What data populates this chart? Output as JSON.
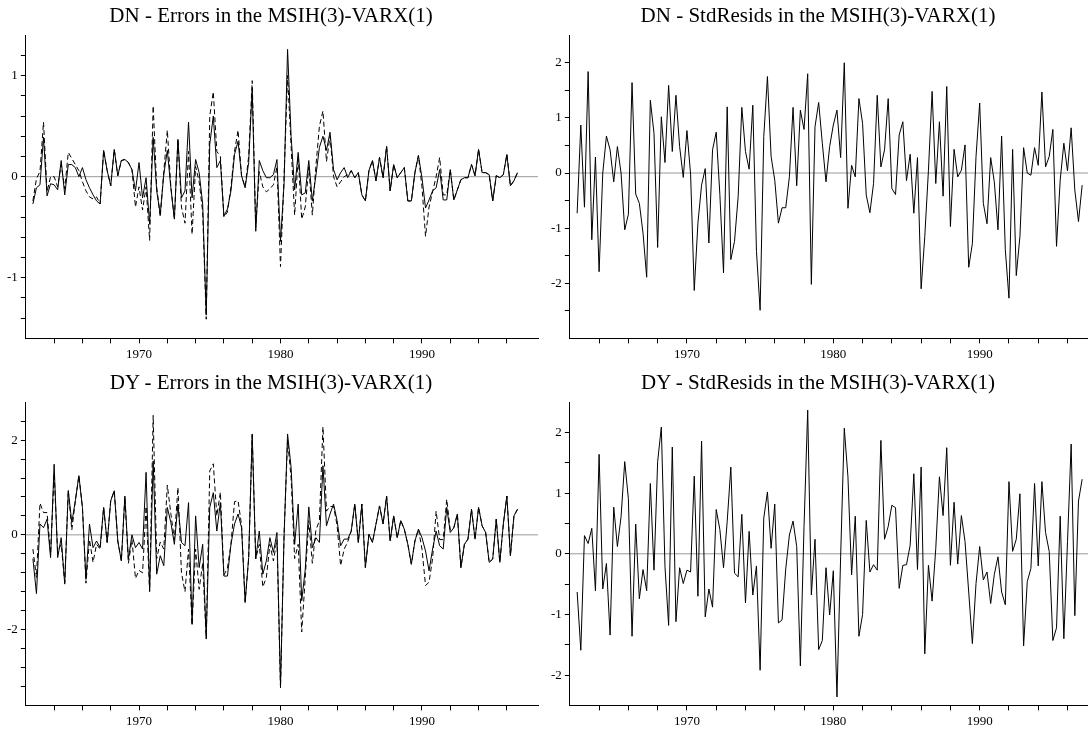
{
  "chart_data": [
    {
      "type": "line",
      "title": "DN - Errors in the MSIH(3)-VARX(1)",
      "x": [
        1962.5,
        1962.75,
        1963,
        1963.25,
        1963.5,
        1963.75,
        1964,
        1964.25,
        1964.5,
        1964.75,
        1965,
        1965.25,
        1965.5,
        1965.75,
        1966,
        1966.25,
        1966.5,
        1966.75,
        1967,
        1967.25,
        1967.5,
        1967.75,
        1968,
        1968.25,
        1968.5,
        1968.75,
        1969,
        1969.25,
        1969.5,
        1969.75,
        1970,
        1970.25,
        1970.5,
        1970.75,
        1971,
        1971.25,
        1971.5,
        1971.75,
        1972,
        1972.25,
        1972.5,
        1972.75,
        1973,
        1973.25,
        1973.5,
        1973.75,
        1974,
        1974.25,
        1974.5,
        1974.75,
        1975,
        1975.25,
        1975.5,
        1975.75,
        1976,
        1976.25,
        1976.5,
        1976.75,
        1977,
        1977.25,
        1977.5,
        1977.75,
        1978,
        1978.25,
        1978.5,
        1978.75,
        1979,
        1979.25,
        1979.5,
        1979.75,
        1980,
        1980.25,
        1980.5,
        1980.75,
        1981,
        1981.25,
        1981.5,
        1981.75,
        1982,
        1982.25,
        1982.5,
        1982.75,
        1983,
        1983.25,
        1983.5,
        1983.75,
        1984,
        1984.25,
        1984.5,
        1984.75,
        1985,
        1985.25,
        1985.5,
        1985.75,
        1986,
        1986.25,
        1986.5,
        1986.75,
        1987,
        1987.25,
        1987.5,
        1987.75,
        1988,
        1988.25,
        1988.5,
        1988.75,
        1989,
        1989.25,
        1989.5,
        1989.75,
        1990,
        1990.25,
        1990.5,
        1990.75,
        1991,
        1991.25,
        1991.5,
        1991.75,
        1992,
        1992.25,
        1992.5,
        1992.75,
        1993,
        1993.25,
        1993.5,
        1993.75,
        1994,
        1994.25,
        1994.5,
        1994.75,
        1995,
        1995.25,
        1995.5,
        1995.75,
        1996,
        1996.25,
        1996.5,
        1996.75
      ],
      "series": [
        {
          "color": "#000000",
          "line_style": "solid",
          "values": [
            -0.27,
            -0.11,
            -0.08,
            0.39,
            -0.19,
            -0.07,
            -0.08,
            -0.13,
            0.16,
            -0.18,
            0.12,
            0.12,
            0.09,
            0,
            0.09,
            -0.03,
            -0.11,
            -0.18,
            -0.24,
            -0.27,
            0.26,
            0.06,
            -0.09,
            0.27,
            0.01,
            0.16,
            0.17,
            0.14,
            0.07,
            -0.14,
            0.14,
            -0.21,
            -0.01,
            -0.47,
            0.39,
            -0.14,
            -0.37,
            0.02,
            0.26,
            -0.11,
            -0.42,
            0.37,
            -0.21,
            -0.14,
            0.54,
            -0.21,
            0.17,
            0.04,
            -0.27,
            -1.37,
            0.32,
            0.6,
            0.09,
            0.16,
            -0.39,
            -0.32,
            -0.14,
            0.22,
            0.35,
            0.01,
            -0.11,
            0.14,
            0.87,
            -0.54,
            0.16,
            0.06,
            -0.01,
            -0.01,
            0.02,
            0.17,
            -0.64,
            -0.08,
            1.26,
            0.4,
            -0.13,
            0.24,
            -0.18,
            -0.16,
            0.16,
            -0.24,
            0.01,
            0.29,
            0.4,
            0.26,
            0.44,
            0.07,
            -0.03,
            0.04,
            0.09,
            -0.01,
            0.06,
            -0.01,
            0.04,
            -0.18,
            -0.24,
            0.06,
            0.16,
            -0.04,
            0.19,
            -0.01,
            0.3,
            -0.14,
            0.12,
            -0.01,
            0.04,
            0.09,
            -0.24,
            -0.24,
            0.04,
            0.21,
            -0.01,
            -0.31,
            -0.23,
            -0.14,
            -0.11,
            0.07,
            -0.23,
            -0.23,
            0.07,
            -0.23,
            -0.13,
            -0.03,
            -0.01,
            -0.01,
            0.12,
            0.01,
            0.27,
            0.04,
            0.04,
            0.02,
            -0.24,
            0.01,
            -0.01,
            0.02,
            0.22,
            -0.09,
            -0.04,
            0.04
          ]
        },
        {
          "color": "#000000",
          "line_style": "dashed",
          "values": [
            -0.24,
            -0.02,
            0.05,
            0.54,
            -0.15,
            0,
            0,
            -0.1,
            0.12,
            -0.12,
            0.24,
            0.18,
            0.12,
            0.06,
            -0.05,
            -0.14,
            -0.2,
            -0.22,
            -0.2,
            -0.27,
            0.26,
            0.06,
            -0.09,
            0.27,
            0.01,
            0.16,
            0.17,
            0.14,
            0.07,
            -0.3,
            -0.1,
            -0.33,
            -0.1,
            -0.63,
            0.7,
            -0.1,
            -0.4,
            0.05,
            0.46,
            -0.1,
            -0.42,
            0.37,
            -0.3,
            -0.46,
            0.25,
            -0.57,
            0.1,
            -0.05,
            -0.35,
            -1.41,
            0.6,
            0.84,
            0.25,
            0.2,
            -0.4,
            -0.35,
            -0.1,
            0.25,
            0.46,
            0,
            -0.1,
            0.2,
            0.95,
            -0.5,
            0.05,
            -0.1,
            -0.15,
            -0.12,
            -0.08,
            0.1,
            -0.89,
            0,
            1,
            0.3,
            -0.38,
            0.2,
            -0.42,
            -0.3,
            0.1,
            -0.38,
            0.1,
            0.5,
            0.65,
            0.15,
            0.4,
            0,
            -0.1,
            -0.05,
            0,
            0.02,
            0.06,
            -0.01,
            0.04,
            -0.18,
            -0.24,
            0.06,
            0.16,
            -0.04,
            0.19,
            -0.01,
            0.3,
            -0.14,
            0.12,
            -0.01,
            0.04,
            0.09,
            -0.24,
            -0.24,
            0.04,
            0.21,
            -0.1,
            -0.59,
            -0.3,
            -0.15,
            0,
            0.19,
            -0.18,
            -0.18,
            0.07,
            -0.23,
            -0.13,
            -0.03,
            -0.01,
            -0.01,
            0.12,
            0.01,
            0.27,
            0.04,
            0.04,
            0.02,
            -0.24,
            0.01,
            -0.01,
            0.02,
            0.22,
            -0.09,
            -0.04,
            0.04
          ]
        }
      ],
      "xlim": [
        1962,
        1998.2
      ],
      "xticks": [
        {
          "value": 1964,
          "label": null
        },
        {
          "value": 1966,
          "label": null
        },
        {
          "value": 1968,
          "label": null
        },
        1970,
        {
          "value": 1972,
          "label": null
        },
        {
          "value": 1974,
          "label": null
        },
        {
          "value": 1976,
          "label": null
        },
        {
          "value": 1978,
          "label": null
        },
        1980,
        {
          "value": 1982,
          "label": null
        },
        {
          "value": 1984,
          "label": null
        },
        {
          "value": 1986,
          "label": null
        },
        {
          "value": 1988,
          "label": null
        },
        1990,
        {
          "value": 1992,
          "label": null
        },
        {
          "value": 1994,
          "label": null
        },
        {
          "value": 1996,
          "label": null
        }
      ],
      "ylim": [
        -1.6,
        1.4
      ],
      "yticks": [
        {
          "value": -1.4,
          "label": null
        },
        {
          "value": -1.2,
          "label": null
        },
        -1,
        {
          "value": -0.8,
          "label": null
        },
        {
          "value": -0.6,
          "label": null
        },
        {
          "value": -0.4,
          "label": null
        },
        {
          "value": -0.2,
          "label": null
        },
        0,
        {
          "value": 0.2,
          "label": null
        },
        {
          "value": 0.4,
          "label": null
        },
        {
          "value": 0.6,
          "label": null
        },
        {
          "value": 0.8,
          "label": null
        },
        1,
        {
          "value": 1.2,
          "label": null
        }
      ],
      "ref_lines": [
        {
          "axis": "y",
          "value": 0,
          "color": "#999999"
        }
      ]
    },
    {
      "type": "line",
      "title": "DN - StdResids in the MSIH(3)-VARX(1)",
      "x": [
        1962.5,
        1962.75,
        1963,
        1963.25,
        1963.5,
        1963.75,
        1964,
        1964.25,
        1964.5,
        1964.75,
        1965,
        1965.25,
        1965.5,
        1965.75,
        1966,
        1966.25,
        1966.5,
        1966.75,
        1967,
        1967.25,
        1967.5,
        1967.75,
        1968,
        1968.25,
        1968.5,
        1968.75,
        1969,
        1969.25,
        1969.5,
        1969.75,
        1970,
        1970.25,
        1970.5,
        1970.75,
        1971,
        1971.25,
        1971.5,
        1971.75,
        1972,
        1972.25,
        1972.5,
        1972.75,
        1973,
        1973.25,
        1973.5,
        1973.75,
        1974,
        1974.25,
        1974.5,
        1974.75,
        1975,
        1975.25,
        1975.5,
        1975.75,
        1976,
        1976.25,
        1976.5,
        1976.75,
        1977,
        1977.25,
        1977.5,
        1977.75,
        1978,
        1978.25,
        1978.5,
        1978.75,
        1979,
        1979.25,
        1979.5,
        1979.75,
        1980,
        1980.25,
        1980.5,
        1980.75,
        1981,
        1981.25,
        1981.5,
        1981.75,
        1982,
        1982.25,
        1982.5,
        1982.75,
        1983,
        1983.25,
        1983.5,
        1983.75,
        1984,
        1984.25,
        1984.5,
        1984.75,
        1985,
        1985.25,
        1985.5,
        1985.75,
        1986,
        1986.25,
        1986.5,
        1986.75,
        1987,
        1987.25,
        1987.5,
        1987.75,
        1988,
        1988.25,
        1988.5,
        1988.75,
        1989,
        1989.25,
        1989.5,
        1989.75,
        1990,
        1990.25,
        1990.5,
        1990.75,
        1991,
        1991.25,
        1991.5,
        1991.75,
        1992,
        1992.25,
        1992.5,
        1992.75,
        1993,
        1993.25,
        1993.5,
        1993.75,
        1994,
        1994.25,
        1994.5,
        1994.75,
        1995,
        1995.25,
        1995.5,
        1995.75,
        1996,
        1996.25,
        1996.5,
        1996.75,
        1997
      ],
      "series": [
        {
          "color": "#000000",
          "line_style": "solid",
          "values": [
            -0.73,
            0.87,
            -0.62,
            1.84,
            -1.21,
            0.29,
            -1.79,
            0,
            0.67,
            0.42,
            -0.16,
            0.48,
            0,
            -1.03,
            -0.75,
            1.64,
            -0.38,
            -0.55,
            -1.09,
            -1.89,
            1.32,
            0.72,
            -1.35,
            1.02,
            0.19,
            1.59,
            0.39,
            1.41,
            0.48,
            -0.08,
            0.77,
            -0.02,
            -2.13,
            -0.91,
            -0.22,
            0.08,
            -1.27,
            0.42,
            0.74,
            -0.39,
            -1.81,
            1.2,
            -1.57,
            -1.24,
            -0.43,
            1.19,
            0.39,
            0.07,
            1.23,
            -1.42,
            -2.49,
            0.66,
            1.75,
            0.3,
            -0.13,
            -0.91,
            -0.63,
            -0.63,
            -0.07,
            1.19,
            -0.23,
            1.14,
            0.79,
            1.8,
            -2.02,
            0.84,
            1.28,
            0.54,
            -0.16,
            0.48,
            0.87,
            1.14,
            0.28,
            2,
            -0.64,
            0.14,
            -0.07,
            1.35,
            0.9,
            -0.4,
            -0.72,
            -0.19,
            1.41,
            0.11,
            0.42,
            1.35,
            -0.28,
            -0.39,
            0.69,
            0.93,
            -0.14,
            0.34,
            -0.73,
            0.28,
            -2.1,
            -1.15,
            0.05,
            1.48,
            -0.19,
            0.93,
            -0.42,
            1.57,
            -0.97,
            0.43,
            -0.07,
            0.05,
            0.51,
            -1.71,
            -1.28,
            0.3,
            1.27,
            -0.55,
            -0.92,
            0.28,
            -0.16,
            -1.03,
            0.67,
            -1.39,
            -2.27,
            0.43,
            -1.86,
            -1.15,
            0.46,
            0,
            -0.04,
            0.46,
            0.14,
            1.47,
            0.11,
            0.3,
            0.79,
            -1.33,
            -0.13,
            0.54,
            0.04,
            0.82,
            -0.31,
            -0.88,
            -0.22
          ]
        }
      ],
      "xlim": [
        1962,
        1997.4
      ],
      "xticks": [
        {
          "value": 1964,
          "label": null
        },
        {
          "value": 1966,
          "label": null
        },
        {
          "value": 1968,
          "label": null
        },
        1970,
        {
          "value": 1972,
          "label": null
        },
        {
          "value": 1974,
          "label": null
        },
        {
          "value": 1976,
          "label": null
        },
        {
          "value": 1978,
          "label": null
        },
        1980,
        {
          "value": 1982,
          "label": null
        },
        {
          "value": 1984,
          "label": null
        },
        {
          "value": 1986,
          "label": null
        },
        {
          "value": 1988,
          "label": null
        },
        1990,
        {
          "value": 1992,
          "label": null
        },
        {
          "value": 1994,
          "label": null
        },
        {
          "value": 1996,
          "label": null
        }
      ],
      "ylim": [
        -3,
        2.5
      ],
      "yticks": [
        {
          "value": -2.5,
          "label": null
        },
        -2,
        {
          "value": -1.5,
          "label": null
        },
        -1,
        {
          "value": -0.5,
          "label": null
        },
        0,
        {
          "value": 0.5,
          "label": null
        },
        1,
        {
          "value": 1.5,
          "label": null
        },
        2
      ],
      "ref_lines": [
        {
          "axis": "y",
          "value": 0,
          "color": "#999999"
        }
      ]
    },
    {
      "type": "line",
      "title": "DY - Errors in the MSIH(3)-VARX(1)",
      "x": [
        1962.5,
        1962.75,
        1963,
        1963.25,
        1963.5,
        1963.75,
        1964,
        1964.25,
        1964.5,
        1964.75,
        1965,
        1965.25,
        1965.5,
        1965.75,
        1966,
        1966.25,
        1966.5,
        1966.75,
        1967,
        1967.25,
        1967.5,
        1967.75,
        1968,
        1968.25,
        1968.5,
        1968.75,
        1969,
        1969.25,
        1969.5,
        1969.75,
        1970,
        1970.25,
        1970.5,
        1970.75,
        1971,
        1971.25,
        1971.5,
        1971.75,
        1972,
        1972.25,
        1972.5,
        1972.75,
        1973,
        1973.25,
        1973.5,
        1973.75,
        1974,
        1974.25,
        1974.5,
        1974.75,
        1975,
        1975.25,
        1975.5,
        1975.75,
        1976,
        1976.25,
        1976.5,
        1976.75,
        1977,
        1977.25,
        1977.5,
        1977.75,
        1978,
        1978.25,
        1978.5,
        1978.75,
        1979,
        1979.25,
        1979.5,
        1979.75,
        1980,
        1980.25,
        1980.5,
        1980.75,
        1981,
        1981.25,
        1981.5,
        1981.75,
        1982,
        1982.25,
        1982.5,
        1982.75,
        1983,
        1983.25,
        1983.5,
        1983.75,
        1984,
        1984.25,
        1984.5,
        1984.75,
        1985,
        1985.25,
        1985.5,
        1985.75,
        1986,
        1986.25,
        1986.5,
        1986.75,
        1987,
        1987.25,
        1987.5,
        1987.75,
        1988,
        1988.25,
        1988.5,
        1988.75,
        1989,
        1989.25,
        1989.5,
        1989.75,
        1990,
        1990.25,
        1990.5,
        1990.75,
        1991,
        1991.25,
        1991.5,
        1991.75,
        1992,
        1992.25,
        1992.5,
        1992.75,
        1993,
        1993.25,
        1993.5,
        1993.75,
        1994,
        1994.25,
        1994.5,
        1994.75,
        1995,
        1995.25,
        1995.5,
        1995.75,
        1996,
        1996.25,
        1996.5,
        1996.75
      ],
      "series": [
        {
          "color": "#000000",
          "line_style": "solid",
          "values": [
            -0.5,
            -1.24,
            0.23,
            0.15,
            0.33,
            -0.48,
            1.49,
            -0.48,
            -0.06,
            -1.04,
            0.93,
            0.26,
            0.72,
            1.25,
            0.58,
            -0.94,
            0.23,
            -0.27,
            -0.13,
            -0.27,
            0.58,
            -0.16,
            0.72,
            0.93,
            -0.13,
            -0.55,
            0.82,
            -0.51,
            0,
            -0.27,
            -0.16,
            -0.3,
            1.32,
            -1.18,
            1.56,
            -0.83,
            -0.44,
            -0.65,
            0.58,
            0.26,
            -0.2,
            0.65,
            -0.16,
            -0.23,
            0.68,
            -1.89,
            0.4,
            -0.69,
            -0.2,
            -2.17,
            0.58,
            0.89,
            0.08,
            0.68,
            -0.87,
            -0.87,
            -0.2,
            0.23,
            0.44,
            0.15,
            -1.43,
            -0.48,
            2.13,
            -0.51,
            0.08,
            -0.83,
            -0.55,
            -0.06,
            -0.37,
            0.05,
            -3.19,
            -0.06,
            2.13,
            1.42,
            -0.2,
            0.65,
            -1.39,
            -0.73,
            0.59,
            -0.27,
            -0.06,
            -0.16,
            1.46,
            0.19,
            0.44,
            0.65,
            0.3,
            -0.23,
            -0.09,
            -0.09,
            0.08,
            0.65,
            -0.16,
            0.65,
            -0.69,
            0.01,
            -0.16,
            0.23,
            0.61,
            0.23,
            0.82,
            -0.13,
            0.4,
            -0.06,
            0.3,
            0.12,
            -0.2,
            -0.62,
            -0.13,
            0.12,
            -0.06,
            -0.34,
            -0.76,
            -0.3,
            0.08,
            -0.23,
            -0.3,
            0.58,
            0.05,
            0.15,
            0.44,
            -0.69,
            -0.2,
            -0.09,
            0.54,
            -0.09,
            0.58,
            0.19,
            0.05,
            -0.58,
            -0.51,
            0.33,
            -0.58,
            0.23,
            0.82,
            -0.44,
            0.4,
            0.54
          ]
        },
        {
          "color": "#000000",
          "line_style": "dashed",
          "values": [
            -0.3,
            -0.9,
            0.67,
            0.47,
            0.47,
            -0.4,
            1.3,
            -0.35,
            -0.2,
            -1,
            0.95,
            0.1,
            0.72,
            1.25,
            0.58,
            -1.02,
            -0.1,
            -0.58,
            -0.2,
            -0.3,
            0.58,
            -0.16,
            0.72,
            0.93,
            -0.13,
            -0.55,
            0.8,
            -0.6,
            -0.1,
            -0.92,
            -0.75,
            -0.8,
            0.6,
            -1.2,
            2.52,
            -0.5,
            -0.15,
            -0.3,
            1.05,
            0.45,
            -0.1,
            1,
            -0.8,
            -1.2,
            -0.3,
            -1.9,
            -0.3,
            -1.15,
            -0.6,
            -2.2,
            1.35,
            1.5,
            0.4,
            0.9,
            -0.85,
            -0.7,
            -0.2,
            0.7,
            0.72,
            0.2,
            -1.4,
            -0.5,
            2.1,
            -0.5,
            -0.2,
            -1.1,
            -0.9,
            -0.2,
            -0.55,
            -0.1,
            -3.23,
            0,
            2,
            1.2,
            -0.5,
            -0.2,
            -2.05,
            -0.9,
            0.3,
            -0.6,
            0.1,
            0.3,
            2.28,
            0.5,
            0.6,
            0.6,
            0.2,
            -0.65,
            -0.3,
            -0.15,
            0.08,
            0.65,
            -0.16,
            0.65,
            -0.69,
            0.01,
            -0.16,
            0.23,
            0.61,
            0.23,
            0.82,
            -0.13,
            0.4,
            -0.06,
            0.3,
            0.12,
            -0.2,
            -0.62,
            -0.13,
            0.12,
            -0.3,
            -1.07,
            -1,
            -0.5,
            0.5,
            -0.1,
            -0.1,
            0.75,
            0.1,
            0.15,
            0.44,
            -0.69,
            -0.2,
            -0.09,
            0.54,
            -0.09,
            0.58,
            0.19,
            0.05,
            -0.58,
            -0.51,
            0.33,
            -0.58,
            0.23,
            0.82,
            -0.44,
            0.4,
            0.54
          ]
        }
      ],
      "xlim": [
        1962,
        1998.2
      ],
      "xticks": [
        {
          "value": 1964,
          "label": null
        },
        {
          "value": 1966,
          "label": null
        },
        {
          "value": 1968,
          "label": null
        },
        1970,
        {
          "value": 1972,
          "label": null
        },
        {
          "value": 1974,
          "label": null
        },
        {
          "value": 1976,
          "label": null
        },
        {
          "value": 1978,
          "label": null
        },
        1980,
        {
          "value": 1982,
          "label": null
        },
        {
          "value": 1984,
          "label": null
        },
        {
          "value": 1986,
          "label": null
        },
        {
          "value": 1988,
          "label": null
        },
        1990,
        {
          "value": 1992,
          "label": null
        },
        {
          "value": 1994,
          "label": null
        },
        {
          "value": 1996,
          "label": null
        }
      ],
      "ylim": [
        -3.6,
        2.8
      ],
      "yticks": [
        {
          "value": -3.2,
          "label": null
        },
        {
          "value": -2.8,
          "label": null
        },
        {
          "value": -2.4,
          "label": null
        },
        -2,
        {
          "value": -1.6,
          "label": null
        },
        {
          "value": -1.2,
          "label": null
        },
        {
          "value": -0.8,
          "label": null
        },
        {
          "value": -0.4,
          "label": null
        },
        0,
        {
          "value": 0.4,
          "label": null
        },
        {
          "value": 0.8,
          "label": null
        },
        {
          "value": 1.2,
          "label": null
        },
        {
          "value": 1.6,
          "label": null
        },
        2,
        {
          "value": 2.4,
          "label": null
        }
      ],
      "ref_lines": [
        {
          "axis": "y",
          "value": 0,
          "color": "#999999"
        }
      ]
    },
    {
      "type": "line",
      "title": "DY - StdResids in the MSIH(3)-VARX(1)",
      "x": [
        1962.5,
        1962.75,
        1963,
        1963.25,
        1963.5,
        1963.75,
        1964,
        1964.25,
        1964.5,
        1964.75,
        1965,
        1965.25,
        1965.5,
        1965.75,
        1966,
        1966.25,
        1966.5,
        1966.75,
        1967,
        1967.25,
        1967.5,
        1967.75,
        1968,
        1968.25,
        1968.5,
        1968.75,
        1969,
        1969.25,
        1969.5,
        1969.75,
        1970,
        1970.25,
        1970.5,
        1970.75,
        1971,
        1971.25,
        1971.5,
        1971.75,
        1972,
        1972.25,
        1972.5,
        1972.75,
        1973,
        1973.25,
        1973.5,
        1973.75,
        1974,
        1974.25,
        1974.5,
        1974.75,
        1975,
        1975.25,
        1975.5,
        1975.75,
        1976,
        1976.25,
        1976.5,
        1976.75,
        1977,
        1977.25,
        1977.5,
        1977.75,
        1978,
        1978.25,
        1978.5,
        1978.75,
        1979,
        1979.25,
        1979.5,
        1979.75,
        1980,
        1980.25,
        1980.5,
        1980.75,
        1981,
        1981.25,
        1981.5,
        1981.75,
        1982,
        1982.25,
        1982.5,
        1982.75,
        1983,
        1983.25,
        1983.5,
        1983.75,
        1984,
        1984.25,
        1984.5,
        1984.75,
        1985,
        1985.25,
        1985.5,
        1985.75,
        1986,
        1986.25,
        1986.5,
        1986.75,
        1987,
        1987.25,
        1987.5,
        1987.75,
        1988,
        1988.25,
        1988.5,
        1988.75,
        1989,
        1989.25,
        1989.5,
        1989.75,
        1990,
        1990.25,
        1990.5,
        1990.75,
        1991,
        1991.25,
        1991.5,
        1991.75,
        1992,
        1992.25,
        1992.5,
        1992.75,
        1993,
        1993.25,
        1993.5,
        1993.75,
        1994,
        1994.25,
        1994.5,
        1994.75,
        1995,
        1995.25,
        1995.5,
        1995.75,
        1996,
        1996.25,
        1996.5,
        1996.75,
        1997
      ],
      "series": [
        {
          "color": "#000000",
          "line_style": "solid",
          "values": [
            -0.63,
            -1.59,
            0.3,
            0.17,
            0.42,
            -0.61,
            1.64,
            -0.58,
            -0.16,
            -1.34,
            0.77,
            0.12,
            0.61,
            1.52,
            0.91,
            -1.36,
            0.49,
            -0.74,
            -0.26,
            -0.61,
            1.16,
            -0.27,
            1.52,
            2.09,
            -0.21,
            -1.18,
            1.76,
            -1.12,
            -0.23,
            -0.49,
            -0.27,
            -0.3,
            1.28,
            -0.7,
            1.86,
            -1.04,
            -0.58,
            -0.88,
            0.73,
            0.4,
            -0.23,
            0.53,
            1.43,
            -0.32,
            -0.38,
            0.65,
            -0.81,
            0.37,
            -0.68,
            -0.2,
            -1.92,
            0.59,
            1.02,
            0.09,
            0.82,
            -1.14,
            -1.09,
            -0.25,
            0.31,
            0.54,
            0.12,
            -1.85,
            0.45,
            2.37,
            -0.68,
            0.24,
            -1.58,
            -1.43,
            -0.23,
            -1.01,
            -0.28,
            -2.36,
            -0.05,
            2.07,
            1.27,
            -0.35,
            0.62,
            -1.36,
            -1,
            0.55,
            -0.3,
            -0.18,
            -0.27,
            1.87,
            0.24,
            0.45,
            0.8,
            0.76,
            -0.57,
            -0.19,
            -0.18,
            0.14,
            1.32,
            -0.26,
            1.43,
            -1.65,
            -0.19,
            -0.78,
            0.09,
            1.27,
            0.63,
            1.75,
            -0.19,
            0.85,
            -0.17,
            0.63,
            0.2,
            -0.63,
            -1.48,
            -0.49,
            0.12,
            -0.43,
            -0.3,
            -0.82,
            -0.34,
            -0.05,
            -0.63,
            -0.84,
            1.19,
            0.04,
            0.24,
            0.99,
            -1.52,
            -0.46,
            -0.24,
            1.16,
            -0.2,
            1.19,
            0.35,
            0.04,
            -1.43,
            -1.22,
            0.62,
            -1.4,
            0.2,
            1.81,
            -1.02,
            0.87,
            1.23
          ]
        }
      ],
      "xlim": [
        1962,
        1997.4
      ],
      "xticks": [
        {
          "value": 1964,
          "label": null
        },
        {
          "value": 1966,
          "label": null
        },
        {
          "value": 1968,
          "label": null
        },
        1970,
        {
          "value": 1972,
          "label": null
        },
        {
          "value": 1974,
          "label": null
        },
        {
          "value": 1976,
          "label": null
        },
        {
          "value": 1978,
          "label": null
        },
        1980,
        {
          "value": 1982,
          "label": null
        },
        {
          "value": 1984,
          "label": null
        },
        {
          "value": 1986,
          "label": null
        },
        {
          "value": 1988,
          "label": null
        },
        1990,
        {
          "value": 1992,
          "label": null
        },
        {
          "value": 1994,
          "label": null
        },
        {
          "value": 1996,
          "label": null
        }
      ],
      "ylim": [
        -2.5,
        2.5
      ],
      "yticks": [
        -2,
        {
          "value": -1.5,
          "label": null
        },
        -1,
        {
          "value": -0.5,
          "label": null
        },
        0,
        {
          "value": 0.5,
          "label": null
        },
        1,
        {
          "value": 1.5,
          "label": null
        },
        2
      ],
      "ref_lines": [
        {
          "axis": "y",
          "value": 0,
          "color": "#999999"
        }
      ]
    }
  ]
}
